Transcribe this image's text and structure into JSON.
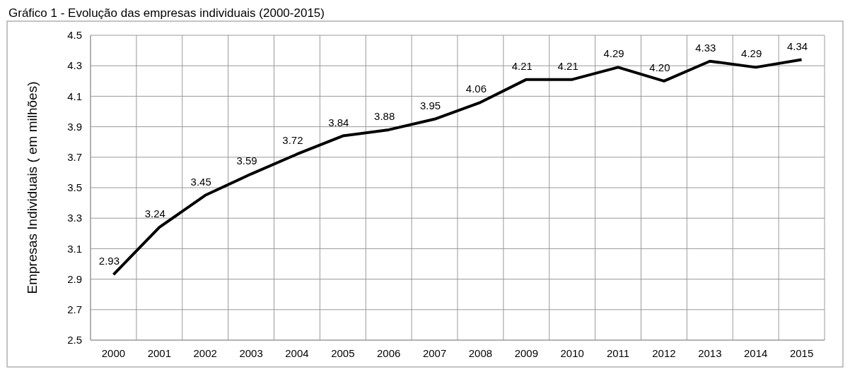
{
  "chart_data": {
    "type": "line",
    "title": "Gráfico 1 - Evolução das empresas individuais (2000-2015)",
    "ylabel": "Empresas Individuais ( em milhões)",
    "categories": [
      "2000",
      "2001",
      "2002",
      "2003",
      "2004",
      "2005",
      "2006",
      "2007",
      "2008",
      "2009",
      "2010",
      "2011",
      "2012",
      "2013",
      "2014",
      "2015"
    ],
    "series": [
      {
        "color": "#000000",
        "values": [
          2.93,
          3.24,
          3.45,
          3.59,
          3.72,
          3.84,
          3.88,
          3.95,
          4.06,
          4.21,
          4.21,
          4.29,
          4.2,
          4.33,
          4.29,
          4.34
        ],
        "value_labels": [
          "2.93",
          "3.24",
          "3.45",
          "3.59",
          "3.72",
          "3.84",
          "3.88",
          "3.95",
          "4.06",
          "4.21",
          "4.21",
          "4.29",
          "4.20",
          "4.33",
          "4.29",
          "4.34"
        ]
      }
    ],
    "ylim": [
      2.5,
      4.5
    ],
    "yticks": [
      {
        "value": 2.5,
        "label": "2.5"
      },
      {
        "value": 2.7,
        "label": "2.7"
      },
      {
        "value": 2.9,
        "label": "2.9"
      },
      {
        "value": 3.1,
        "label": "3.1"
      },
      {
        "value": 3.3,
        "label": "3.3"
      },
      {
        "value": 3.5,
        "label": "3.5"
      },
      {
        "value": 3.7,
        "label": "3.7"
      },
      {
        "value": 3.9,
        "label": "3.9"
      },
      {
        "value": 4.1,
        "label": "4.1"
      },
      {
        "value": 4.3,
        "label": "4.3"
      },
      {
        "value": 4.5,
        "label": "4.5"
      }
    ],
    "grid": true,
    "marker": "none",
    "line_style": "solid"
  }
}
